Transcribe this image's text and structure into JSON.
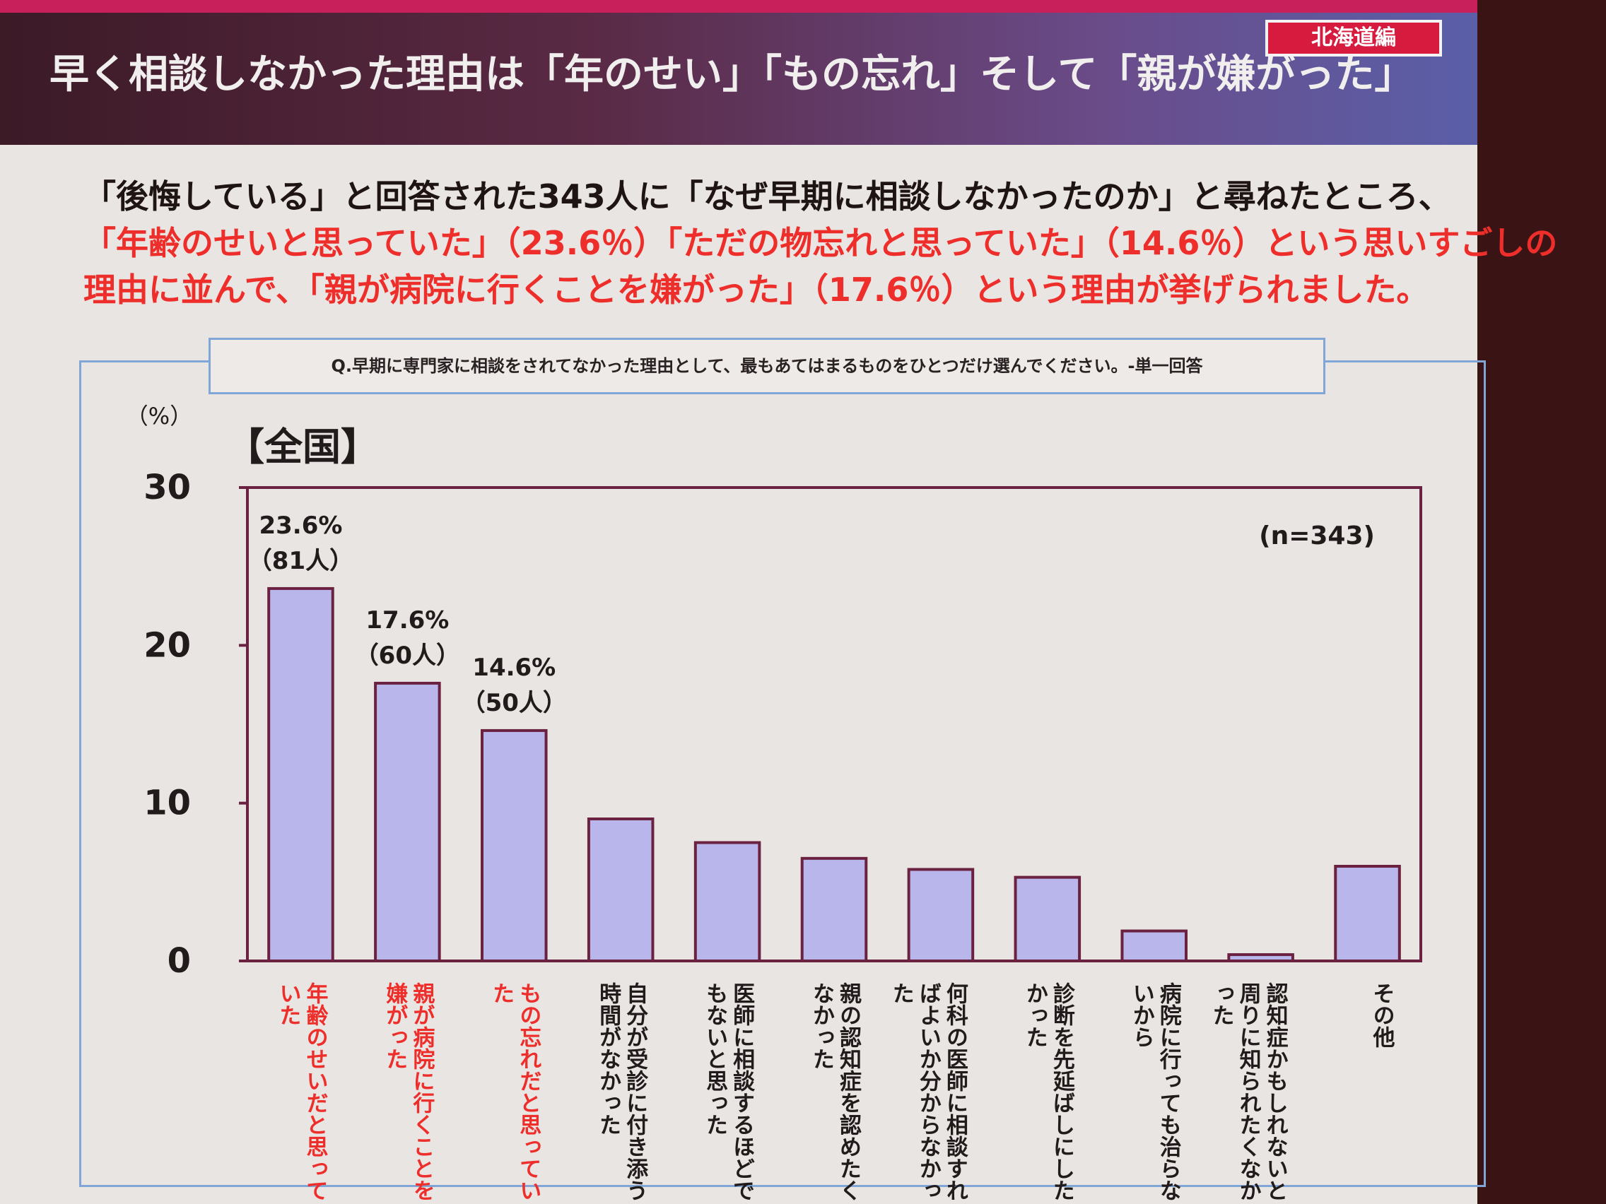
{
  "slide": {
    "title": "早く相談しなかった理由は「年のせい」「もの忘れ」そして「親が嫌がった」",
    "region_badge": "北海道編"
  },
  "intro": {
    "line1": "「後悔している」と回答された343人に「なぜ早期に相談しなかったのか」と尋ねたところ、",
    "line2": "「年齢のせいと思っていた」（23.6％）「ただの物忘れと思っていた」（14.6％）という思いすごしの",
    "line3": "理由に並んで、「親が病院に行くことを嫌がった」（17.6％）という理由が挙げられました。"
  },
  "question": "Q.早期に専門家に相談をされてなかった理由として、最もあてはまるものをひとつだけ選んでください。-単一回答",
  "region_label": "【全国】",
  "colors": {
    "bar": "#b8b6ea",
    "bar_border": "#6b2240",
    "axis": "#6b2240",
    "highlight_text": "#ee2e2a",
    "normal_text": "#221b1b"
  },
  "chart_data": {
    "type": "bar",
    "unit_label": "（%）",
    "sample_note": "(n=343)",
    "ylim": [
      0,
      30
    ],
    "yticks": [
      0,
      10,
      20,
      30
    ],
    "categories": [
      "年齢のせいだと思っていた",
      "親が病院に行くことを嫌がった",
      "もの忘れだと思っていた",
      "自分が受診に付き添う時間がなかった",
      "医師に相談するほどでもないと思った",
      "親の認知症を認めたくなかった",
      "何科の医師に相談すればよいか分からなかった",
      "診断を先延ばしにしたかった",
      "病院に行っても治らないから",
      "認知症かもしれないと周りに知られたくなかった",
      "その他"
    ],
    "values": [
      23.6,
      17.6,
      14.6,
      9.0,
      7.5,
      6.5,
      5.8,
      5.3,
      1.9,
      0.4,
      6.0
    ],
    "highlighted": [
      true,
      true,
      true,
      false,
      false,
      false,
      false,
      false,
      false,
      false,
      false
    ],
    "data_labels": [
      {
        "pct": "23.6%",
        "count": "（81人）"
      },
      {
        "pct": "17.6%",
        "count": "（60人）"
      },
      {
        "pct": "14.6%",
        "count": "（50人）"
      }
    ]
  }
}
